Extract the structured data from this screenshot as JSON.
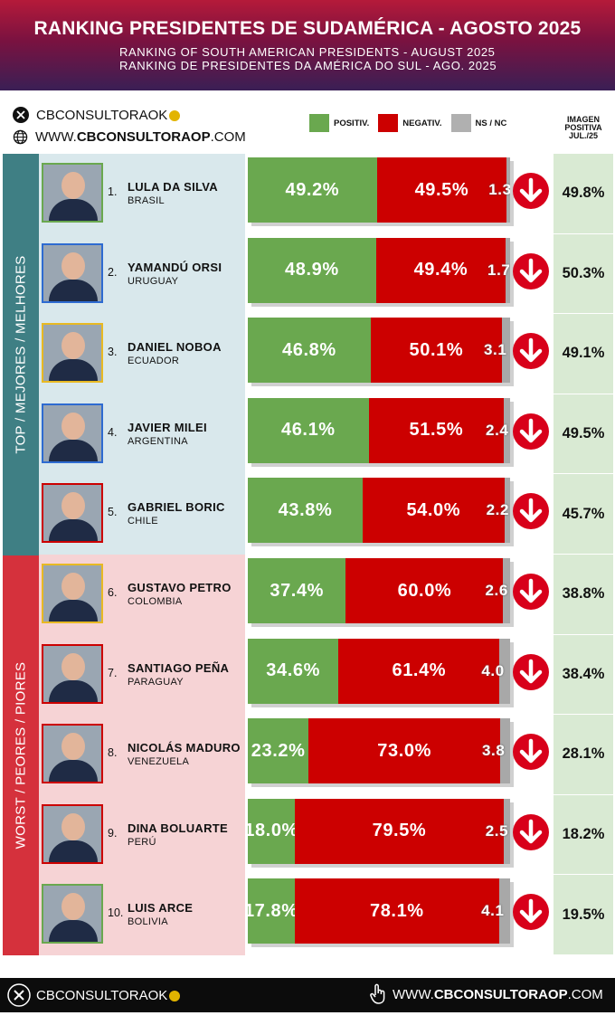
{
  "header": {
    "title": "RANKING PRESIDENTES DE SUDAMÉRICA - AGOSTO 2025",
    "subtitle": "RANKING OF SOUTH AMERICAN PRESIDENTS - AUGUST 2025 RANKING DE PRESIDENTES DA AMÉRICA DO SUL - AGO. 2025"
  },
  "social": {
    "handle": "CBCONSULTORAOK",
    "website_prefix": "WWW.",
    "website_main": "CBCONSULTORAOP",
    "website_suffix": ".COM"
  },
  "legend": {
    "positive": "POSITIV.",
    "negative": "NEGATIV.",
    "nsnc": "NS / NC",
    "imagen": "IMAGEN POSITIVA JUL./25"
  },
  "bands": {
    "top": "TOP / MEJORES / MELHORES",
    "bottom": "WORST / PEORES / PIORES"
  },
  "colors": {
    "positive": "#6aa84f",
    "negative": "#cc0000",
    "nsnc": "#a8a8a8"
  },
  "chart_data": {
    "type": "bar",
    "stacked": true,
    "orientation": "horizontal",
    "categories": [
      "LULA DA SILVA",
      "YAMANDÚ ORSI",
      "DANIEL NOBOA",
      "JAVIER MILEI",
      "GABRIEL BORIC",
      "GUSTAVO PETRO",
      "SANTIAGO PEÑA",
      "NICOLÁS MADURO",
      "DINA BOLUARTE",
      "LUIS ARCE"
    ],
    "series": [
      {
        "name": "POSITIV.",
        "values": [
          49.2,
          48.9,
          46.8,
          46.1,
          43.8,
          37.4,
          34.6,
          23.2,
          18.0,
          17.8
        ]
      },
      {
        "name": "NEGATIV.",
        "values": [
          49.5,
          49.4,
          50.1,
          51.5,
          54.0,
          60.0,
          61.4,
          73.0,
          79.5,
          78.1
        ]
      },
      {
        "name": "NS / NC",
        "values": [
          1.3,
          1.7,
          3.1,
          2.4,
          2.2,
          2.6,
          4.0,
          3.8,
          2.5,
          4.1
        ]
      }
    ],
    "rows": [
      {
        "rank": "1.",
        "name": "LULA DA SILVA",
        "country": "BRASIL",
        "pos": "49.2%",
        "neg": "49.5%",
        "ns": "1.3",
        "prev": "49.8%",
        "pv": 49.2,
        "nv": 49.5,
        "nsv": 1.3,
        "group": "top",
        "frame": "#6aa84f",
        "trend": "down"
      },
      {
        "rank": "2.",
        "name": "YAMANDÚ ORSI",
        "country": "URUGUAY",
        "pos": "48.9%",
        "neg": "49.4%",
        "ns": "1.7",
        "prev": "50.3%",
        "pv": 48.9,
        "nv": 49.4,
        "nsv": 1.7,
        "group": "top",
        "frame": "#2e6bd1",
        "trend": "down"
      },
      {
        "rank": "3.",
        "name": "DANIEL NOBOA",
        "country": "ECUADOR",
        "pos": "46.8%",
        "neg": "50.1%",
        "ns": "3.1",
        "prev": "49.1%",
        "pv": 46.8,
        "nv": 50.1,
        "nsv": 3.1,
        "group": "top",
        "frame": "#e8b923",
        "trend": "down"
      },
      {
        "rank": "4.",
        "name": "JAVIER MILEI",
        "country": "ARGENTINA",
        "pos": "46.1%",
        "neg": "51.5%",
        "ns": "2.4",
        "prev": "49.5%",
        "pv": 46.1,
        "nv": 51.5,
        "nsv": 2.4,
        "group": "top",
        "frame": "#2e6bd1",
        "trend": "down"
      },
      {
        "rank": "5.",
        "name": "GABRIEL BORIC",
        "country": "CHILE",
        "pos": "43.8%",
        "neg": "54.0%",
        "ns": "2.2",
        "prev": "45.7%",
        "pv": 43.8,
        "nv": 54.0,
        "nsv": 2.2,
        "group": "top",
        "frame": "#cc0000",
        "trend": "down"
      },
      {
        "rank": "6.",
        "name": "GUSTAVO PETRO",
        "country": "COLOMBIA",
        "pos": "37.4%",
        "neg": "60.0%",
        "ns": "2.6",
        "prev": "38.8%",
        "pv": 37.4,
        "nv": 60.0,
        "nsv": 2.6,
        "group": "bottom",
        "frame": "#e8b923",
        "trend": "down"
      },
      {
        "rank": "7.",
        "name": "SANTIAGO PEÑA",
        "country": "PARAGUAY",
        "pos": "34.6%",
        "neg": "61.4%",
        "ns": "4.0",
        "prev": "38.4%",
        "pv": 34.6,
        "nv": 61.4,
        "nsv": 4.0,
        "group": "bottom",
        "frame": "#cc0000",
        "trend": "down"
      },
      {
        "rank": "8.",
        "name": "NICOLÁS MADURO",
        "country": "VENEZUELA",
        "pos": "23.2%",
        "neg": "73.0%",
        "ns": "3.8",
        "prev": "28.1%",
        "pv": 23.2,
        "nv": 73.0,
        "nsv": 3.8,
        "group": "bottom",
        "frame": "#cc0000",
        "trend": "down"
      },
      {
        "rank": "9.",
        "name": "DINA BOLUARTE",
        "country": "PERÚ",
        "pos": "18.0%",
        "neg": "79.5%",
        "ns": "2.5",
        "prev": "18.2%",
        "pv": 18.0,
        "nv": 79.5,
        "nsv": 2.5,
        "group": "bottom",
        "frame": "#cc0000",
        "trend": "down"
      },
      {
        "rank": "10.",
        "name": "LUIS ARCE",
        "country": "BOLIVIA",
        "pos": "17.8%",
        "neg": "78.1%",
        "ns": "4.1",
        "prev": "19.5%",
        "pv": 17.8,
        "nv": 78.1,
        "nsv": 4.1,
        "group": "bottom",
        "frame": "#6aa84f",
        "trend": "down"
      }
    ]
  },
  "footer": {
    "handle": "CBCONSULTORAOK",
    "website_prefix": "WWW.",
    "website_main": "CBCONSULTORAOP",
    "website_suffix": ".COM"
  }
}
